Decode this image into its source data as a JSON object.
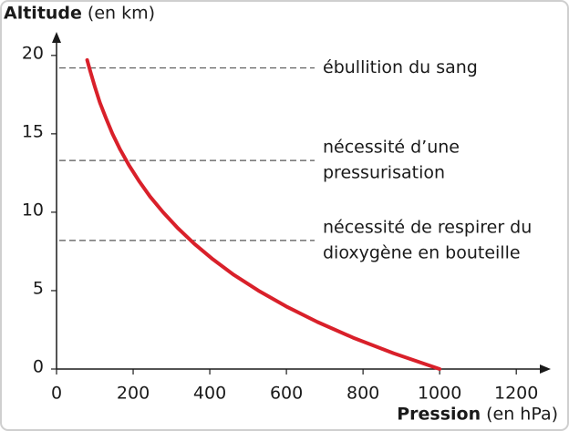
{
  "chart_data": {
    "type": "line",
    "y_label": "Altitude",
    "y_label_unit": "(en km)",
    "x_label": "Pression",
    "x_label_unit": "(en hPa)",
    "x": [
      1000,
      880,
      774,
      681,
      599,
      527,
      463,
      408,
      359,
      316,
      278,
      244,
      215,
      189,
      166,
      146,
      129,
      113,
      100,
      88,
      80
    ],
    "values": [
      0,
      1,
      2,
      3,
      4,
      5,
      6,
      7,
      8,
      9,
      10,
      11,
      12,
      13,
      14,
      15,
      16,
      17,
      18,
      19,
      19.7
    ],
    "color": "#d9202a",
    "xlim": [
      0,
      1290
    ],
    "ylim": [
      0,
      21.5
    ],
    "xticks": [
      0,
      200,
      400,
      600,
      800,
      1000,
      1200
    ],
    "yticks": [
      0,
      5,
      10,
      15,
      20
    ],
    "annotations": [
      {
        "y": 19.2,
        "lines": [
          "ébullition du sang"
        ]
      },
      {
        "y": 13.3,
        "lines": [
          "nécessité d’une",
          "pressurisation"
        ]
      },
      {
        "y": 8.2,
        "lines": [
          "nécessité de respirer du",
          "dioxygène en bouteille"
        ]
      }
    ]
  }
}
